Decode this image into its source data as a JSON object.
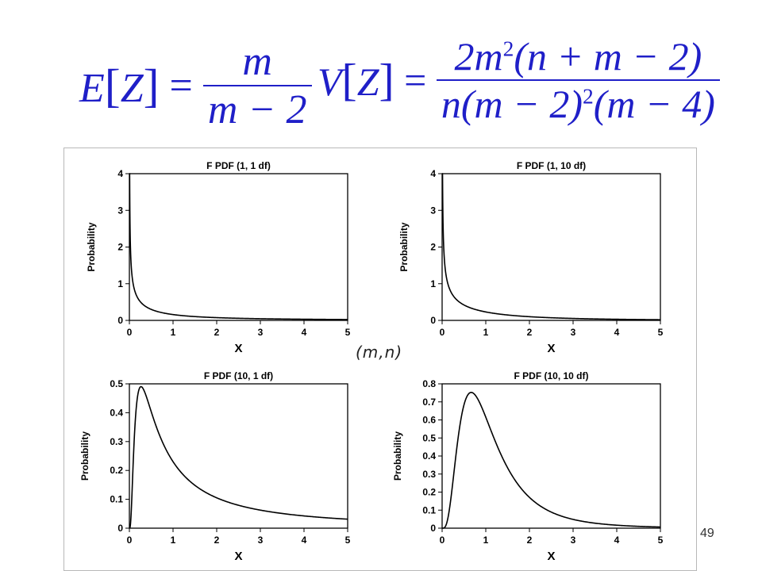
{
  "formulas": {
    "ez": {
      "lhs_letter": "E",
      "lhs_arg": "Z",
      "eq": "=",
      "num": "m",
      "den": "m − 2"
    },
    "vz": {
      "lhs_letter": "V",
      "lhs_arg": "Z",
      "eq": "=",
      "num_a": "2m",
      "num_sup": "2",
      "num_b": "(n + m − 2)",
      "den_a": "n(m − 2)",
      "den_sup": "2",
      "den_b": "(m − 4)"
    }
  },
  "caption": "(m,n)",
  "page_number": "49",
  "chart_data": [
    {
      "type": "line",
      "title": "F PDF (1, 1 df)",
      "xlabel": "X",
      "ylabel": "Probability",
      "xlim": [
        0,
        5
      ],
      "ylim": [
        0,
        4
      ],
      "xticks": [
        "0",
        "1",
        "2",
        "3",
        "4",
        "5"
      ],
      "yticks": [
        "0",
        "1",
        "2",
        "3",
        "4"
      ],
      "df": [
        1,
        1
      ],
      "x": [
        0.01,
        0.05,
        0.1,
        0.2,
        0.5,
        1,
        2,
        3,
        4,
        5
      ],
      "y": [
        3.15,
        1.36,
        0.91,
        0.59,
        0.3,
        0.16,
        0.075,
        0.046,
        0.032,
        0.024
      ]
    },
    {
      "type": "line",
      "title": "F PDF (1, 10 df)",
      "xlabel": "X",
      "ylabel": "Probability",
      "xlim": [
        0,
        5
      ],
      "ylim": [
        0,
        4
      ],
      "xticks": [
        "0",
        "1",
        "2",
        "3",
        "4",
        "5"
      ],
      "yticks": [
        "0",
        "1",
        "2",
        "3",
        "4"
      ],
      "df": [
        1,
        10
      ],
      "x": [
        0.01,
        0.05,
        0.1,
        0.2,
        0.5,
        1,
        2,
        3,
        4,
        5
      ],
      "y": [
        3.9,
        1.73,
        1.2,
        0.82,
        0.45,
        0.24,
        0.085,
        0.035,
        0.016,
        0.008
      ]
    },
    {
      "type": "line",
      "title": "F PDF (10, 1 df)",
      "xlabel": "X",
      "ylabel": "Probability",
      "xlim": [
        0,
        5
      ],
      "ylim": [
        0,
        0.5
      ],
      "xticks": [
        "0",
        "1",
        "2",
        "3",
        "4",
        "5"
      ],
      "yticks": [
        "0",
        "0.1",
        "0.2",
        "0.3",
        "0.4",
        "0.5"
      ],
      "df": [
        10,
        1
      ],
      "x": [
        0,
        0.1,
        0.28,
        0.5,
        1,
        2,
        3,
        4,
        5
      ],
      "y": [
        0,
        0.36,
        0.49,
        0.43,
        0.26,
        0.11,
        0.065,
        0.046,
        0.035
      ]
    },
    {
      "type": "line",
      "title": "F PDF (10, 10 df)",
      "xlabel": "X",
      "ylabel": "Probability",
      "xlim": [
        0,
        5
      ],
      "ylim": [
        0,
        0.8
      ],
      "xticks": [
        "0",
        "1",
        "2",
        "3",
        "4",
        "5"
      ],
      "yticks": [
        "0",
        "0.1",
        "0.2",
        "0.3",
        "0.4",
        "0.5",
        "0.6",
        "0.7",
        "0.8"
      ],
      "df": [
        10,
        10
      ],
      "x": [
        0,
        0.25,
        0.5,
        0.67,
        1,
        1.5,
        2,
        3,
        4,
        5
      ],
      "y": [
        0,
        0.32,
        0.71,
        0.76,
        0.62,
        0.33,
        0.16,
        0.045,
        0.017,
        0.007
      ]
    }
  ]
}
